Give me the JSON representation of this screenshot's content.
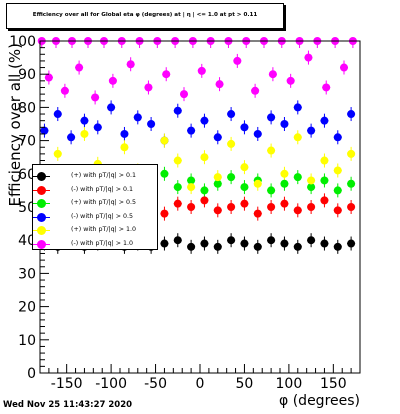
{
  "chart_data": {
    "type": "scatter",
    "title": "Efficiency over all for Global eta φ (degrees) at | η | <= 1.0 at pt > 0.11",
    "xlabel": "φ (degrees)",
    "ylabel": "Efficiency over all (%)",
    "xlim": [
      -180,
      180
    ],
    "ylim": [
      0,
      100
    ],
    "x_ticks": [
      -150,
      -100,
      -50,
      0,
      50,
      100,
      150
    ],
    "y_ticks": [
      0,
      10,
      20,
      30,
      40,
      50,
      60,
      70,
      80,
      90,
      100
    ],
    "grid": false,
    "legend_placement": "left-middle",
    "series": [
      {
        "name": "(+) with pT/|q| > 0.1",
        "color": "#000000",
        "points": [
          [
            -175,
            39
          ],
          [
            -160,
            38
          ],
          [
            -145,
            40
          ],
          [
            -130,
            38
          ],
          [
            -115,
            39
          ],
          [
            -100,
            40
          ],
          [
            -85,
            38
          ],
          [
            -70,
            39
          ],
          [
            -55,
            38
          ],
          [
            -40,
            39
          ],
          [
            -25,
            40
          ],
          [
            -10,
            38
          ],
          [
            5,
            39
          ],
          [
            20,
            38
          ],
          [
            35,
            40
          ],
          [
            50,
            39
          ],
          [
            65,
            38
          ],
          [
            80,
            40
          ],
          [
            95,
            39
          ],
          [
            110,
            38
          ],
          [
            125,
            40
          ],
          [
            140,
            39
          ],
          [
            155,
            38
          ],
          [
            170,
            39
          ]
        ]
      },
      {
        "name": "(-) with pT/|q| > 0.1",
        "color": "#ff0000",
        "points": [
          [
            -175,
            50
          ],
          [
            -160,
            51
          ],
          [
            -145,
            49
          ],
          [
            -130,
            50
          ],
          [
            -115,
            52
          ],
          [
            -100,
            50
          ],
          [
            -85,
            49
          ],
          [
            -70,
            51
          ],
          [
            -55,
            50
          ],
          [
            -40,
            48
          ],
          [
            -25,
            51
          ],
          [
            -10,
            50
          ],
          [
            5,
            52
          ],
          [
            20,
            49
          ],
          [
            35,
            50
          ],
          [
            50,
            51
          ],
          [
            65,
            48
          ],
          [
            80,
            50
          ],
          [
            95,
            51
          ],
          [
            110,
            49
          ],
          [
            125,
            50
          ],
          [
            140,
            52
          ],
          [
            155,
            49
          ],
          [
            170,
            50
          ]
        ]
      },
      {
        "name": "(+) with pT/|q| > 0.5",
        "color": "#00ee00",
        "points": [
          [
            -175,
            56
          ],
          [
            -160,
            58
          ],
          [
            -145,
            55
          ],
          [
            -130,
            57
          ],
          [
            -115,
            59
          ],
          [
            -100,
            56
          ],
          [
            -85,
            58
          ],
          [
            -70,
            55
          ],
          [
            -55,
            57
          ],
          [
            -40,
            60
          ],
          [
            -25,
            56
          ],
          [
            -10,
            58
          ],
          [
            5,
            55
          ],
          [
            20,
            57
          ],
          [
            35,
            59
          ],
          [
            50,
            56
          ],
          [
            65,
            58
          ],
          [
            80,
            55
          ],
          [
            95,
            57
          ],
          [
            110,
            59
          ],
          [
            125,
            56
          ],
          [
            140,
            58
          ],
          [
            155,
            55
          ],
          [
            170,
            57
          ]
        ]
      },
      {
        "name": "(-) with pT/|q| > 0.5",
        "color": "#0000ff",
        "points": [
          [
            -175,
            73
          ],
          [
            -160,
            78
          ],
          [
            -145,
            71
          ],
          [
            -130,
            76
          ],
          [
            -115,
            74
          ],
          [
            -100,
            80
          ],
          [
            -85,
            72
          ],
          [
            -70,
            77
          ],
          [
            -55,
            75
          ],
          [
            -40,
            70
          ],
          [
            -25,
            79
          ],
          [
            -10,
            73
          ],
          [
            5,
            76
          ],
          [
            20,
            71
          ],
          [
            35,
            78
          ],
          [
            50,
            74
          ],
          [
            65,
            72
          ],
          [
            80,
            77
          ],
          [
            95,
            75
          ],
          [
            110,
            80
          ],
          [
            125,
            73
          ],
          [
            140,
            76
          ],
          [
            155,
            71
          ],
          [
            170,
            78
          ]
        ]
      },
      {
        "name": "(+) with pT/|q| > 1.0",
        "color": "#ffff00",
        "points": [
          [
            -175,
            60
          ],
          [
            -160,
            66
          ],
          [
            -145,
            55
          ],
          [
            -130,
            72
          ],
          [
            -115,
            63
          ],
          [
            -100,
            58
          ],
          [
            -85,
            68
          ],
          [
            -70,
            61
          ],
          [
            -55,
            57
          ],
          [
            -40,
            70
          ],
          [
            -25,
            64
          ],
          [
            -10,
            56
          ],
          [
            5,
            65
          ],
          [
            20,
            59
          ],
          [
            35,
            69
          ],
          [
            50,
            62
          ],
          [
            65,
            57
          ],
          [
            80,
            67
          ],
          [
            95,
            60
          ],
          [
            110,
            71
          ],
          [
            125,
            58
          ],
          [
            140,
            64
          ],
          [
            155,
            61
          ],
          [
            170,
            66
          ]
        ]
      },
      {
        "name": "(-) with pT/|q| > 1.0",
        "color": "#ff00ff",
        "points": [
          [
            -178,
            100
          ],
          [
            -170,
            89
          ],
          [
            -162,
            100
          ],
          [
            -152,
            85
          ],
          [
            -144,
            100
          ],
          [
            -136,
            92
          ],
          [
            -126,
            100
          ],
          [
            -118,
            83
          ],
          [
            -108,
            100
          ],
          [
            -98,
            88
          ],
          [
            -88,
            100
          ],
          [
            -78,
            93
          ],
          [
            -68,
            100
          ],
          [
            -58,
            86
          ],
          [
            -48,
            100
          ],
          [
            -38,
            90
          ],
          [
            -28,
            100
          ],
          [
            -18,
            84
          ],
          [
            -8,
            100
          ],
          [
            2,
            91
          ],
          [
            12,
            100
          ],
          [
            22,
            87
          ],
          [
            32,
            100
          ],
          [
            42,
            94
          ],
          [
            52,
            100
          ],
          [
            62,
            85
          ],
          [
            72,
            100
          ],
          [
            82,
            90
          ],
          [
            92,
            100
          ],
          [
            102,
            88
          ],
          [
            112,
            100
          ],
          [
            122,
            95
          ],
          [
            132,
            100
          ],
          [
            142,
            86
          ],
          [
            152,
            100
          ],
          [
            162,
            92
          ],
          [
            172,
            100
          ]
        ]
      }
    ]
  },
  "footer": {
    "date": "Wed Nov 25 11:43:27 2020"
  }
}
